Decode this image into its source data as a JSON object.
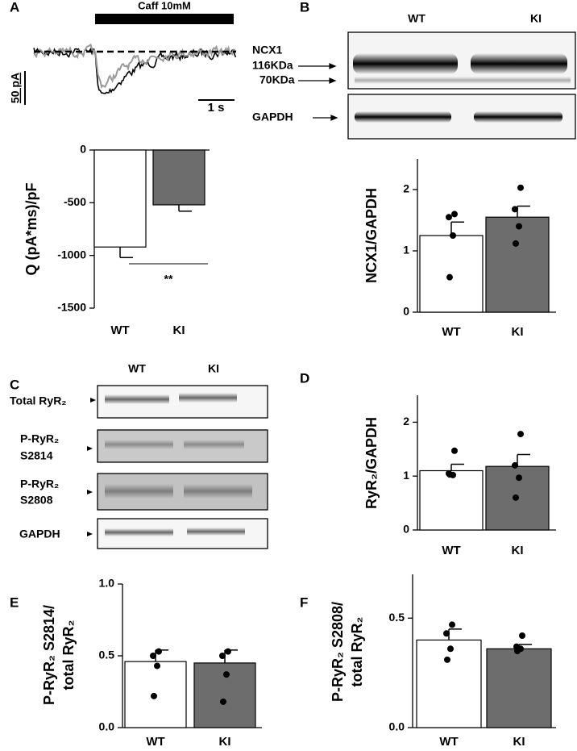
{
  "figure": {
    "panel_letters": [
      "A",
      "B",
      "C",
      "D",
      "E",
      "F"
    ],
    "trace": {
      "stimulus": "Caff 10mM",
      "y_scale": "50 pA",
      "x_scale": "1 s"
    },
    "blot_b": {
      "lanes": [
        "WT",
        "KI"
      ],
      "labels": [
        "NCX1",
        "116KDa",
        "70KDa",
        "GAPDH"
      ]
    },
    "blot_c": {
      "lanes": [
        "WT",
        "KI"
      ],
      "rows": [
        [
          "Total RyR₂"
        ],
        [
          "P-RyR₂",
          "S2814"
        ],
        [
          "P-RyR₂",
          "S2808"
        ],
        [
          "GAPDH"
        ]
      ]
    }
  },
  "chart_data": [
    {
      "type": "bar",
      "ylabel": "Q (pA*ms)/pF",
      "categories": [
        "WT",
        "KI"
      ],
      "values": [
        -920,
        -520
      ],
      "errors": [
        100,
        60
      ],
      "colors": [
        "#ffffff",
        "#6d6d6d"
      ],
      "ylim": [
        -1500,
        0
      ],
      "yticks": [
        -1500,
        -1000,
        -500,
        0
      ],
      "annotation": "**"
    },
    {
      "type": "bar",
      "ylabel": "NCX1/GAPDH",
      "categories": [
        "WT",
        "KI"
      ],
      "values": [
        1.25,
        1.55
      ],
      "errors": [
        0.22,
        0.18
      ],
      "points": [
        [
          1.6,
          1.55,
          1.25,
          0.57
        ],
        [
          2.03,
          1.68,
          1.4,
          1.12
        ]
      ],
      "colors": [
        "#ffffff",
        "#6d6d6d"
      ],
      "ylim": [
        0,
        2.5
      ],
      "yticks": [
        0,
        1,
        2
      ]
    },
    {
      "type": "bar",
      "ylabel": "RyR₂/GAPDH",
      "categories": [
        "WT",
        "KI"
      ],
      "values": [
        1.1,
        1.18
      ],
      "errors": [
        0.12,
        0.22
      ],
      "points": [
        [
          1.47,
          1.05,
          1.02,
          1.03
        ],
        [
          1.78,
          1.2,
          0.97,
          0.6
        ]
      ],
      "colors": [
        "#ffffff",
        "#6d6d6d"
      ],
      "ylim": [
        0,
        2.5
      ],
      "yticks": [
        0,
        1,
        2
      ]
    },
    {
      "type": "bar",
      "ylabel": [
        "P-RyR₂ S2814/",
        "total RyR₂"
      ],
      "categories": [
        "WT",
        "KI"
      ],
      "values": [
        0.46,
        0.45
      ],
      "errors": [
        0.08,
        0.09
      ],
      "points": [
        [
          0.53,
          0.5,
          0.43,
          0.22
        ],
        [
          0.53,
          0.5,
          0.37,
          0.18
        ]
      ],
      "colors": [
        "#ffffff",
        "#6d6d6d"
      ],
      "ylim": [
        0,
        1
      ],
      "yticks": [
        {
          "value": 0,
          "label": "0.0"
        },
        0.5,
        {
          "value": 1,
          "label": "1.0"
        }
      ]
    },
    {
      "type": "bar",
      "ylabel": [
        "P-RyR₂ S2808/",
        "total RyR₂"
      ],
      "categories": [
        "WT",
        "KI"
      ],
      "values": [
        0.4,
        0.36
      ],
      "errors": [
        0.05,
        0.02
      ],
      "points": [
        [
          0.47,
          0.43,
          0.36,
          0.31
        ],
        [
          0.42,
          0.37,
          0.36,
          0.35
        ]
      ],
      "colors": [
        "#ffffff",
        "#6d6d6d"
      ],
      "ylim": [
        0,
        0.7
      ],
      "yticks": [
        {
          "value": 0,
          "label": "0.0"
        },
        0.5
      ]
    }
  ]
}
